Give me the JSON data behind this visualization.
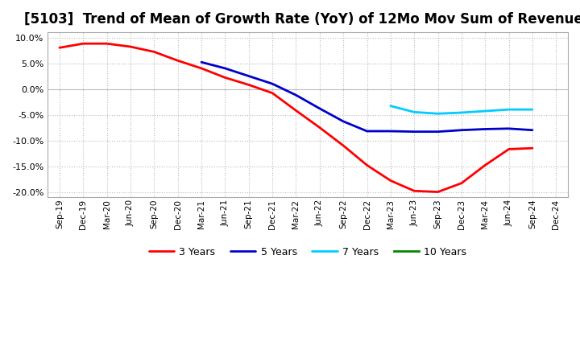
{
  "title": "[5103]  Trend of Mean of Growth Rate (YoY) of 12Mo Mov Sum of Revenues",
  "title_fontsize": 12,
  "background_color": "#ffffff",
  "plot_bg_color": "#ffffff",
  "grid_color": "#bbbbbb",
  "ylim": [
    -0.21,
    0.11
  ],
  "yticks": [
    -0.2,
    -0.15,
    -0.1,
    -0.05,
    0.0,
    0.05,
    0.1
  ],
  "legend_labels": [
    "3 Years",
    "5 Years",
    "7 Years",
    "10 Years"
  ],
  "legend_colors": [
    "#ff0000",
    "#0000cc",
    "#00ccff",
    "#008800"
  ],
  "x_labels": [
    "Sep-19",
    "Dec-19",
    "Mar-20",
    "Jun-20",
    "Sep-20",
    "Dec-20",
    "Mar-21",
    "Jun-21",
    "Sep-21",
    "Dec-21",
    "Mar-22",
    "Jun-22",
    "Sep-22",
    "Dec-22",
    "Mar-23",
    "Jun-23",
    "Sep-23",
    "Dec-23",
    "Mar-24",
    "Jun-24",
    "Sep-24",
    "Dec-24"
  ],
  "series_3y": {
    "x_indices": [
      0,
      1,
      2,
      3,
      4,
      5,
      6,
      7,
      8,
      9,
      10,
      11,
      12,
      13,
      14,
      15,
      16,
      17,
      18,
      19,
      20
    ],
    "y": [
      0.08,
      0.088,
      0.088,
      0.082,
      0.072,
      0.055,
      0.04,
      0.022,
      0.008,
      -0.008,
      -0.042,
      -0.075,
      -0.11,
      -0.148,
      -0.178,
      -0.198,
      -0.2,
      -0.183,
      -0.148,
      -0.117,
      -0.115
    ]
  },
  "series_5y": {
    "x_indices": [
      6,
      7,
      8,
      9,
      10,
      11,
      12,
      13,
      14,
      15,
      16,
      17,
      18,
      19,
      20
    ],
    "y": [
      0.052,
      0.04,
      0.025,
      0.01,
      -0.012,
      -0.038,
      -0.063,
      -0.082,
      -0.082,
      -0.083,
      -0.083,
      -0.08,
      -0.078,
      -0.077,
      -0.08
    ]
  },
  "series_7y": {
    "x_indices": [
      14,
      15,
      16,
      17,
      18,
      19,
      20
    ],
    "y": [
      -0.033,
      -0.045,
      -0.048,
      -0.046,
      -0.043,
      -0.04,
      -0.04
    ]
  },
  "series_10y": {
    "x_indices": [],
    "y": []
  }
}
